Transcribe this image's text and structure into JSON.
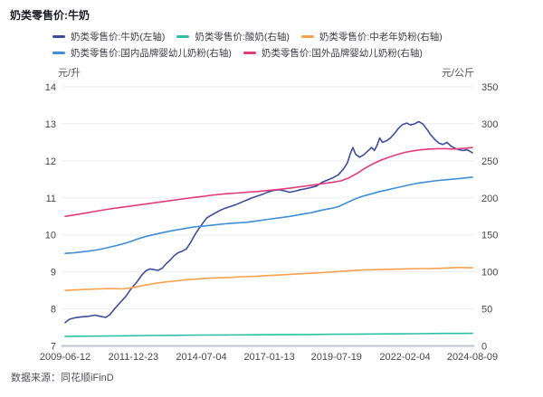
{
  "page": {
    "title": "奶类零售价:牛奶",
    "source": "数据来源：同花顺iFinD"
  },
  "chart_data": {
    "type": "line",
    "title": "奶类零售价:牛奶",
    "legend_position": "top",
    "grid": true,
    "x_axis": {
      "range": [
        2009.44,
        2024.6
      ],
      "tick_years": [
        2009.44,
        2011.98,
        2014.51,
        2017.04,
        2019.54,
        2022.09,
        2024.6
      ],
      "tick_labels": [
        "2009-06-12",
        "2011-12-23",
        "2014-07-04",
        "2017-01-13",
        "2019-07-19",
        "2022-02-04",
        "2024-08-09"
      ]
    },
    "left_axis": {
      "unit": "元/升",
      "min": 7,
      "max": 14,
      "step": 1,
      "ticks": [
        7,
        8,
        9,
        10,
        11,
        12,
        13,
        14
      ]
    },
    "right_axis": {
      "unit": "元/公斤",
      "min": 0,
      "max": 350,
      "step": 50,
      "ticks": [
        0,
        50,
        100,
        150,
        200,
        250,
        300,
        350
      ]
    },
    "series": [
      {
        "name": "奶类零售价:牛奶(左轴)",
        "axis": "left",
        "color": "#3D4D9E",
        "points": [
          [
            2009.44,
            7.63
          ],
          [
            2009.6,
            7.72
          ],
          [
            2009.8,
            7.76
          ],
          [
            2010.0,
            7.78
          ],
          [
            2010.3,
            7.8
          ],
          [
            2010.55,
            7.83
          ],
          [
            2010.75,
            7.8
          ],
          [
            2010.95,
            7.77
          ],
          [
            2011.1,
            7.84
          ],
          [
            2011.3,
            8.02
          ],
          [
            2011.5,
            8.18
          ],
          [
            2011.7,
            8.34
          ],
          [
            2011.9,
            8.55
          ],
          [
            2012.1,
            8.72
          ],
          [
            2012.3,
            8.92
          ],
          [
            2012.45,
            9.03
          ],
          [
            2012.6,
            9.08
          ],
          [
            2012.75,
            9.06
          ],
          [
            2012.9,
            9.04
          ],
          [
            2013.05,
            9.1
          ],
          [
            2013.2,
            9.22
          ],
          [
            2013.35,
            9.32
          ],
          [
            2013.5,
            9.44
          ],
          [
            2013.65,
            9.52
          ],
          [
            2013.8,
            9.56
          ],
          [
            2013.95,
            9.62
          ],
          [
            2014.1,
            9.78
          ],
          [
            2014.25,
            9.98
          ],
          [
            2014.4,
            10.15
          ],
          [
            2014.55,
            10.3
          ],
          [
            2014.7,
            10.45
          ],
          [
            2014.85,
            10.52
          ],
          [
            2015.0,
            10.58
          ],
          [
            2015.2,
            10.66
          ],
          [
            2015.4,
            10.72
          ],
          [
            2015.6,
            10.77
          ],
          [
            2015.8,
            10.82
          ],
          [
            2016.0,
            10.88
          ],
          [
            2016.2,
            10.94
          ],
          [
            2016.4,
            11.0
          ],
          [
            2016.6,
            11.05
          ],
          [
            2016.8,
            11.1
          ],
          [
            2017.0,
            11.16
          ],
          [
            2017.2,
            11.2
          ],
          [
            2017.4,
            11.22
          ],
          [
            2017.6,
            11.19
          ],
          [
            2017.8,
            11.15
          ],
          [
            2018.0,
            11.18
          ],
          [
            2018.2,
            11.22
          ],
          [
            2018.4,
            11.25
          ],
          [
            2018.6,
            11.28
          ],
          [
            2018.8,
            11.32
          ],
          [
            2019.0,
            11.42
          ],
          [
            2019.2,
            11.48
          ],
          [
            2019.4,
            11.54
          ],
          [
            2019.6,
            11.62
          ],
          [
            2019.8,
            11.78
          ],
          [
            2019.95,
            11.95
          ],
          [
            2020.05,
            12.18
          ],
          [
            2020.15,
            12.36
          ],
          [
            2020.25,
            12.18
          ],
          [
            2020.4,
            12.1
          ],
          [
            2020.55,
            12.16
          ],
          [
            2020.7,
            12.26
          ],
          [
            2020.85,
            12.36
          ],
          [
            2020.95,
            12.28
          ],
          [
            2021.05,
            12.42
          ],
          [
            2021.15,
            12.62
          ],
          [
            2021.25,
            12.5
          ],
          [
            2021.4,
            12.54
          ],
          [
            2021.55,
            12.62
          ],
          [
            2021.7,
            12.74
          ],
          [
            2021.85,
            12.88
          ],
          [
            2022.0,
            12.98
          ],
          [
            2022.15,
            13.02
          ],
          [
            2022.3,
            12.97
          ],
          [
            2022.45,
            13.0
          ],
          [
            2022.6,
            13.06
          ],
          [
            2022.75,
            13.0
          ],
          [
            2022.9,
            12.86
          ],
          [
            2023.05,
            12.7
          ],
          [
            2023.2,
            12.58
          ],
          [
            2023.35,
            12.48
          ],
          [
            2023.5,
            12.44
          ],
          [
            2023.65,
            12.5
          ],
          [
            2023.8,
            12.4
          ],
          [
            2023.95,
            12.34
          ],
          [
            2024.1,
            12.3
          ],
          [
            2024.25,
            12.28
          ],
          [
            2024.4,
            12.3
          ],
          [
            2024.6,
            12.22
          ]
        ]
      },
      {
        "name": "奶类零售价:酸奶(右轴)",
        "axis": "right",
        "color": "#2CC1A5",
        "points": [
          [
            2009.44,
            13.0
          ],
          [
            2010.5,
            13.2
          ],
          [
            2011.5,
            13.6
          ],
          [
            2012.5,
            14.0
          ],
          [
            2013.5,
            14.3
          ],
          [
            2014.5,
            14.6
          ],
          [
            2015.5,
            14.8
          ],
          [
            2016.5,
            15.0
          ],
          [
            2017.5,
            15.2
          ],
          [
            2018.5,
            15.4
          ],
          [
            2019.5,
            15.7
          ],
          [
            2020.5,
            16.0
          ],
          [
            2021.5,
            16.3
          ],
          [
            2022.5,
            16.5
          ],
          [
            2023.5,
            16.8
          ],
          [
            2024.6,
            17.0
          ]
        ]
      },
      {
        "name": "奶类零售价:中老年奶粉(右轴)",
        "axis": "right",
        "color": "#F9A14C",
        "points": [
          [
            2009.44,
            75
          ],
          [
            2010.0,
            76
          ],
          [
            2010.6,
            77
          ],
          [
            2011.2,
            77.5
          ],
          [
            2011.6,
            77
          ],
          [
            2012.0,
            79
          ],
          [
            2012.4,
            82
          ],
          [
            2012.8,
            84.5
          ],
          [
            2013.2,
            86.5
          ],
          [
            2013.6,
            88
          ],
          [
            2014.0,
            89.5
          ],
          [
            2014.4,
            90.5
          ],
          [
            2014.8,
            91.5
          ],
          [
            2015.2,
            92
          ],
          [
            2015.6,
            92.5
          ],
          [
            2016.0,
            93.5
          ],
          [
            2016.5,
            94
          ],
          [
            2017.0,
            95
          ],
          [
            2017.5,
            96
          ],
          [
            2018.0,
            97
          ],
          [
            2018.5,
            98
          ],
          [
            2019.0,
            99
          ],
          [
            2019.5,
            100
          ],
          [
            2020.0,
            101.5
          ],
          [
            2020.5,
            102.5
          ],
          [
            2021.0,
            103
          ],
          [
            2021.5,
            103.5
          ],
          [
            2022.0,
            104
          ],
          [
            2022.5,
            104.5
          ],
          [
            2023.0,
            104.5
          ],
          [
            2023.5,
            105
          ],
          [
            2023.9,
            105.5
          ],
          [
            2024.15,
            106
          ],
          [
            2024.4,
            105.5
          ],
          [
            2024.6,
            105.5
          ]
        ]
      },
      {
        "name": "奶类零售价:国内品牌婴幼儿奶粉(右轴)",
        "axis": "right",
        "color": "#3E8ED8",
        "points": [
          [
            2009.44,
            125
          ],
          [
            2009.8,
            126
          ],
          [
            2010.2,
            127.5
          ],
          [
            2010.6,
            129.5
          ],
          [
            2011.0,
            132.5
          ],
          [
            2011.4,
            136
          ],
          [
            2011.8,
            140
          ],
          [
            2012.1,
            144
          ],
          [
            2012.4,
            147.5
          ],
          [
            2012.7,
            150
          ],
          [
            2013.0,
            152.5
          ],
          [
            2013.4,
            155.5
          ],
          [
            2013.8,
            158
          ],
          [
            2014.2,
            160.5
          ],
          [
            2014.6,
            162
          ],
          [
            2015.0,
            163.5
          ],
          [
            2015.4,
            165
          ],
          [
            2015.8,
            166
          ],
          [
            2016.2,
            167
          ],
          [
            2016.6,
            169
          ],
          [
            2017.0,
            171
          ],
          [
            2017.4,
            173
          ],
          [
            2017.8,
            175
          ],
          [
            2018.2,
            177.5
          ],
          [
            2018.6,
            180
          ],
          [
            2019.0,
            183.5
          ],
          [
            2019.3,
            185.5
          ],
          [
            2019.6,
            188
          ],
          [
            2019.9,
            193
          ],
          [
            2020.2,
            198
          ],
          [
            2020.5,
            202
          ],
          [
            2020.8,
            205
          ],
          [
            2021.1,
            208
          ],
          [
            2021.4,
            210.5
          ],
          [
            2021.7,
            213
          ],
          [
            2022.0,
            215.5
          ],
          [
            2022.3,
            218
          ],
          [
            2022.6,
            220
          ],
          [
            2022.9,
            221.5
          ],
          [
            2023.2,
            223
          ],
          [
            2023.5,
            224
          ],
          [
            2023.8,
            225
          ],
          [
            2024.1,
            226
          ],
          [
            2024.35,
            227
          ],
          [
            2024.6,
            228
          ]
        ]
      },
      {
        "name": "奶类零售价:国外品牌婴幼儿奶粉(右轴)",
        "axis": "right",
        "color": "#E23A7B",
        "points": [
          [
            2009.44,
            175
          ],
          [
            2009.8,
            177
          ],
          [
            2010.2,
            179.5
          ],
          [
            2010.6,
            182
          ],
          [
            2011.0,
            184.5
          ],
          [
            2011.4,
            186.5
          ],
          [
            2011.8,
            188.5
          ],
          [
            2012.2,
            190.5
          ],
          [
            2012.6,
            192.5
          ],
          [
            2013.0,
            194.5
          ],
          [
            2013.4,
            196.5
          ],
          [
            2013.8,
            198.5
          ],
          [
            2014.2,
            200.5
          ],
          [
            2014.6,
            202
          ],
          [
            2015.0,
            204
          ],
          [
            2015.4,
            205.5
          ],
          [
            2015.8,
            206.5
          ],
          [
            2016.2,
            207.5
          ],
          [
            2016.6,
            208.5
          ],
          [
            2017.0,
            210
          ],
          [
            2017.4,
            211.5
          ],
          [
            2017.8,
            213
          ],
          [
            2018.2,
            215
          ],
          [
            2018.6,
            217
          ],
          [
            2019.0,
            219
          ],
          [
            2019.4,
            221
          ],
          [
            2019.7,
            223
          ],
          [
            2020.0,
            227
          ],
          [
            2020.3,
            233
          ],
          [
            2020.6,
            240
          ],
          [
            2020.9,
            246
          ],
          [
            2021.2,
            251
          ],
          [
            2021.5,
            255
          ],
          [
            2021.8,
            258.5
          ],
          [
            2022.1,
            261.5
          ],
          [
            2022.4,
            263.5
          ],
          [
            2022.7,
            265
          ],
          [
            2023.0,
            266
          ],
          [
            2023.3,
            266.5
          ],
          [
            2023.6,
            266.5
          ],
          [
            2023.9,
            266
          ],
          [
            2024.1,
            266.5
          ],
          [
            2024.35,
            267
          ],
          [
            2024.6,
            268
          ]
        ]
      }
    ]
  }
}
